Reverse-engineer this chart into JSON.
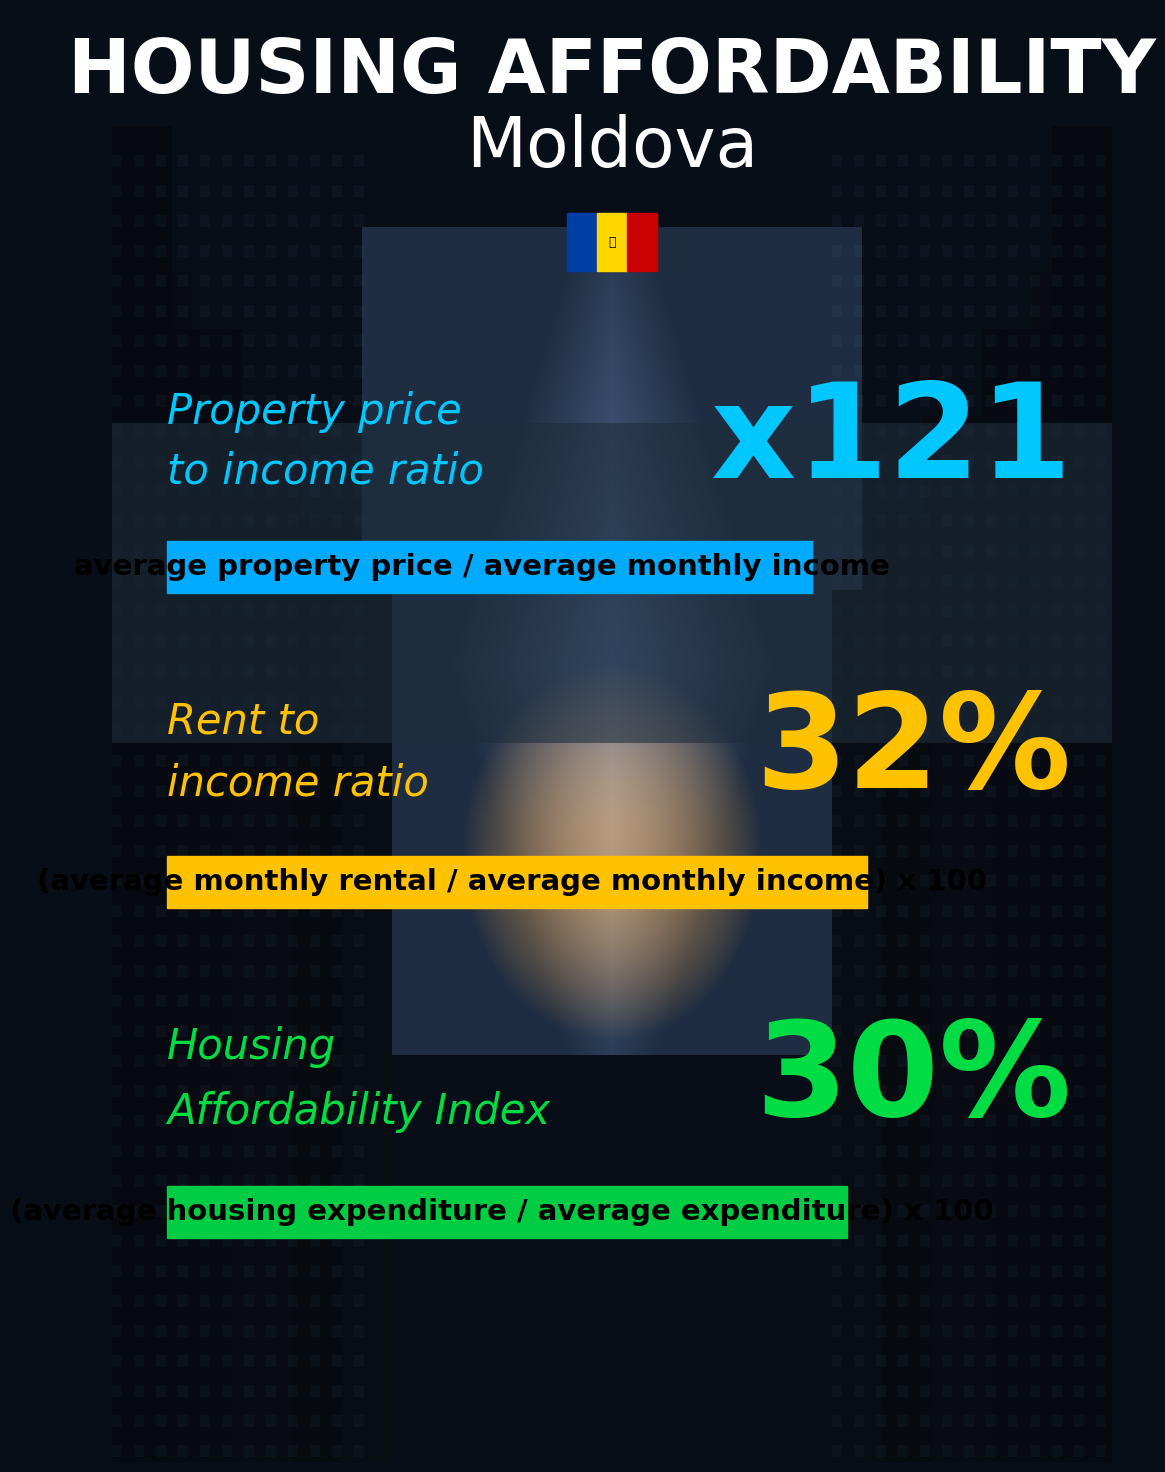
{
  "title_line1": "HOUSING AFFORDABILITY",
  "title_line2": "Moldova",
  "bg_color": "#080e18",
  "section1_label_line1": "Property price",
  "section1_label_line2": "to income ratio",
  "section1_value": "x121",
  "section1_label_color": "#00c8ff",
  "section1_value_color": "#00c8ff",
  "section1_banner_text": "average property price / average monthly income",
  "section1_banner_bg": "#00aaff",
  "section1_banner_text_color": "#000000",
  "section2_label_line1": "Rent to",
  "section2_label_line2": "income ratio",
  "section2_value": "32%",
  "section2_label_color": "#ffc200",
  "section2_value_color": "#ffc200",
  "section2_banner_text": "(average monthly rental / average monthly income) x 100",
  "section2_banner_bg": "#ffc200",
  "section2_banner_text_color": "#000000",
  "section3_label_line1": "Housing",
  "section3_label_line2": "Affordability Index",
  "section3_value": "30%",
  "section3_label_color": "#00dd44",
  "section3_value_color": "#00dd44",
  "section3_banner_text": "(average housing expenditure / average expenditure) x 100",
  "section3_banner_bg": "#00cc44",
  "section3_banner_text_color": "#000000",
  "title_color": "#ffffff",
  "title_fontsize": 54,
  "subtitle_fontsize": 50,
  "label_fontsize": 30,
  "value_fontsize": 95,
  "banner_fontsize": 21,
  "flag_stripe1": "#003DA5",
  "flag_stripe2": "#FFD700",
  "flag_stripe3": "#CC0001"
}
